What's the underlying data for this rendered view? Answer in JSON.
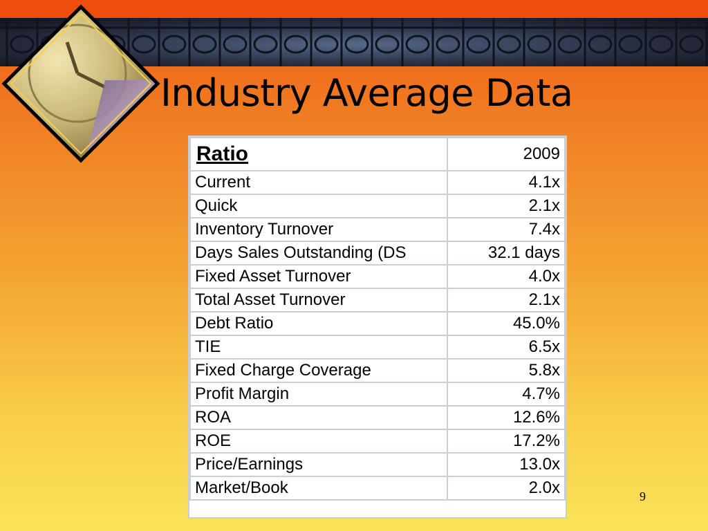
{
  "slide": {
    "title": "Industry Average Data",
    "page_number": "9"
  },
  "table": {
    "header": {
      "label": "Ratio",
      "year": "2009"
    },
    "rows": [
      {
        "label": "Current",
        "value": "4.1x"
      },
      {
        "label": "Quick",
        "value": "2.1x"
      },
      {
        "label": "Inventory Turnover",
        "value": "7.4x"
      },
      {
        "label": "Days Sales Outstanding (DS",
        "value": "32.1 days"
      },
      {
        "label": "Fixed Asset Turnover",
        "value": "4.0x"
      },
      {
        "label": "Total Asset Turnover",
        "value": "2.1x"
      },
      {
        "label": "Debt Ratio",
        "value": "45.0%"
      },
      {
        "label": "TIE",
        "value": "6.5x"
      },
      {
        "label": "Fixed Charge Coverage",
        "value": "5.8x"
      },
      {
        "label": "Profit Margin",
        "value": "4.7%"
      },
      {
        "label": "ROA",
        "value": "12.6%"
      },
      {
        "label": "ROE",
        "value": "17.2%"
      },
      {
        "label": "Price/Earnings",
        "value": "13.0x"
      },
      {
        "label": "Market/Book",
        "value": "2.0x"
      }
    ]
  },
  "decor": {
    "emblem_icon": "clock-money-diamond-icon",
    "fence_icon": "iron-fence-banner"
  }
}
